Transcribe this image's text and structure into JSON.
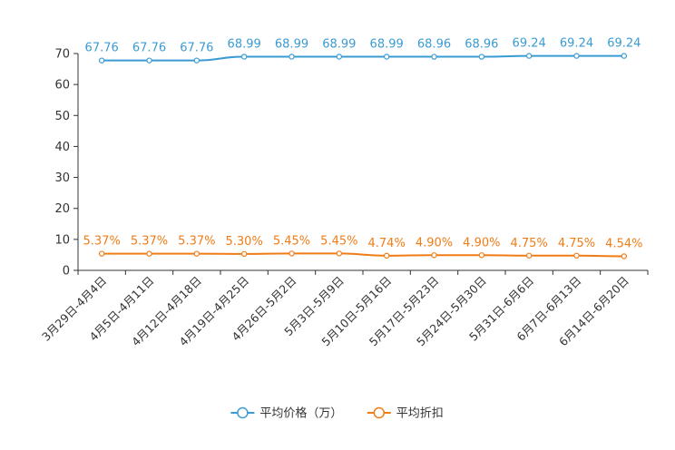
{
  "chart_data": {
    "type": "line",
    "title": "",
    "xlabel": "",
    "ylabel": "",
    "ylim": [
      0,
      70
    ],
    "yticks": [
      0,
      10,
      20,
      30,
      40,
      50,
      60,
      70
    ],
    "grid": false,
    "legend_position": "bottom-center",
    "categories": [
      "3月29日-4月4日",
      "4月5日-4月11日",
      "4月12日-4月18日",
      "4月19日-4月25日",
      "4月26日-5月2日",
      "5月3日-5月9日",
      "5月10日-5月16日",
      "5月17日-5月23日",
      "5月24日-5月30日",
      "5月31日-6月6日",
      "6月7日-6月13日",
      "6月14日-6月20日"
    ],
    "series": [
      {
        "name": "平均价格（万）",
        "color": "#3a9bd3",
        "values": [
          67.76,
          67.76,
          67.76,
          68.99,
          68.99,
          68.99,
          68.99,
          68.96,
          68.96,
          69.24,
          69.24,
          69.24
        ],
        "labels": [
          "67.76",
          "67.76",
          "67.76",
          "68.99",
          "68.99",
          "68.99",
          "68.99",
          "68.96",
          "68.96",
          "69.24",
          "69.24",
          "69.24"
        ]
      },
      {
        "name": "平均折扣",
        "color": "#f07c16",
        "values": [
          5.37,
          5.37,
          5.37,
          5.3,
          5.45,
          5.45,
          4.74,
          4.9,
          4.9,
          4.75,
          4.75,
          4.54
        ],
        "labels": [
          "5.37%",
          "5.37%",
          "5.37%",
          "5.30%",
          "5.45%",
          "5.45%",
          "4.74%",
          "4.90%",
          "4.90%",
          "4.75%",
          "4.75%",
          "4.54%"
        ]
      }
    ]
  }
}
